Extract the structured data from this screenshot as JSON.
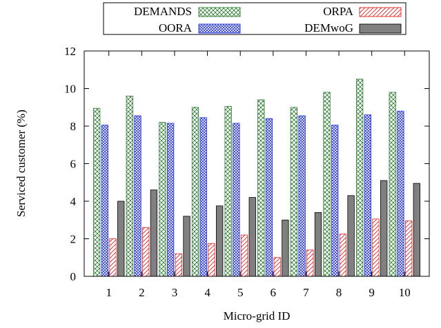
{
  "chart_data": {
    "type": "bar",
    "xlabel": "Micro-grid ID",
    "ylabel": "Serviced customer (%)",
    "ylim": [
      0,
      12
    ],
    "yticks": [
      0,
      2,
      4,
      6,
      8,
      10,
      12
    ],
    "categories": [
      "1",
      "2",
      "3",
      "4",
      "5",
      "6",
      "7",
      "8",
      "9",
      "10"
    ],
    "grid": false,
    "legend_position": "top",
    "series": [
      {
        "name": "DEMANDS",
        "color": "#2e7d32",
        "pattern": "crosshatch",
        "values": [
          8.95,
          9.6,
          8.2,
          9.0,
          9.05,
          9.4,
          9.0,
          9.8,
          10.5,
          9.8
        ]
      },
      {
        "name": "OORA",
        "color": "#1f2ee0",
        "pattern": "fine-crosshatch",
        "values": [
          8.05,
          8.55,
          8.15,
          8.45,
          8.15,
          8.4,
          8.55,
          8.05,
          8.6,
          8.8
        ]
      },
      {
        "name": "ORPA",
        "color": "#e02020",
        "pattern": "diagonal",
        "values": [
          2.0,
          2.6,
          1.2,
          1.75,
          2.2,
          1.0,
          1.4,
          2.25,
          3.05,
          2.95
        ]
      },
      {
        "name": "DEMwoG",
        "color": "#808080",
        "pattern": "solid",
        "values": [
          4.0,
          4.6,
          3.2,
          3.75,
          4.2,
          3.0,
          3.4,
          4.3,
          5.1,
          4.95
        ]
      }
    ]
  }
}
